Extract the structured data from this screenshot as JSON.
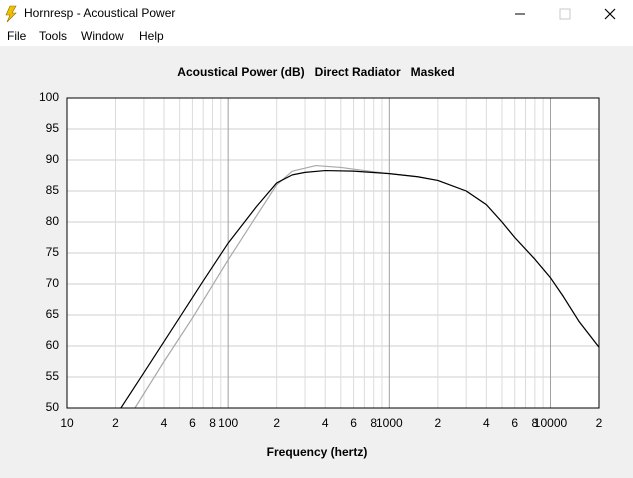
{
  "window": {
    "title": "Hornresp - Acoustical Power",
    "menu": [
      "File",
      "Tools",
      "Window",
      "Help"
    ]
  },
  "chart_data": {
    "type": "line",
    "title": "Acoustical Power (dB)   Direct Radiator   Masked",
    "x_label": "Frequency (hertz)",
    "xscale": "log",
    "grid": true,
    "xlim": [
      10,
      20000
    ],
    "ylim": [
      50,
      100
    ],
    "yticks": [
      50,
      55,
      60,
      65,
      70,
      75,
      80,
      85,
      90,
      95,
      100
    ],
    "xticks": [
      10,
      {
        "value": 20,
        "label": "2"
      },
      {
        "value": 40,
        "label": "4"
      },
      {
        "value": 60,
        "label": "6"
      },
      {
        "value": 80,
        "label": "8"
      },
      100,
      {
        "value": 200,
        "label": "2"
      },
      {
        "value": 400,
        "label": "4"
      },
      {
        "value": 600,
        "label": "6"
      },
      {
        "value": 800,
        "label": "8"
      },
      1000,
      {
        "value": 2000,
        "label": "2"
      },
      {
        "value": 4000,
        "label": "4"
      },
      {
        "value": 6000,
        "label": "6"
      },
      {
        "value": 8000,
        "label": "8"
      },
      10000,
      {
        "value": 20000,
        "label": "2"
      }
    ],
    "xminor": [
      30,
      50,
      70,
      90,
      300,
      500,
      700,
      900,
      3000,
      5000,
      7000,
      9000
    ],
    "series": [
      {
        "color": "#a8a8a8",
        "x": [
          26.4,
          40,
          60,
          100,
          150,
          200,
          250,
          350,
          500,
          700,
          1000,
          1500,
          2000,
          3000,
          4000,
          5000,
          6000,
          8000,
          10000,
          12000,
          15000,
          20000
        ],
        "values": [
          50,
          57.5,
          64.5,
          73.9,
          81,
          86,
          88.2,
          89.1,
          88.8,
          88.3,
          87.8,
          87.3,
          86.7,
          85,
          82.8,
          80,
          77.5,
          74,
          71,
          68,
          64,
          59.8
        ]
      },
      {
        "color": "#000000",
        "x": [
          21.6,
          30,
          50,
          70,
          100,
          150,
          200,
          250,
          300,
          400,
          600,
          1000,
          1500,
          2000,
          3000,
          4000,
          5000,
          6000,
          8000,
          10000,
          12000,
          15000,
          20000
        ],
        "values": [
          50,
          55.7,
          64.6,
          70.5,
          76.6,
          82.5,
          86.3,
          87.6,
          88,
          88.3,
          88.2,
          87.8,
          87.3,
          86.7,
          85,
          82.8,
          80,
          77.5,
          74,
          71,
          68,
          64,
          59.8
        ]
      }
    ]
  }
}
